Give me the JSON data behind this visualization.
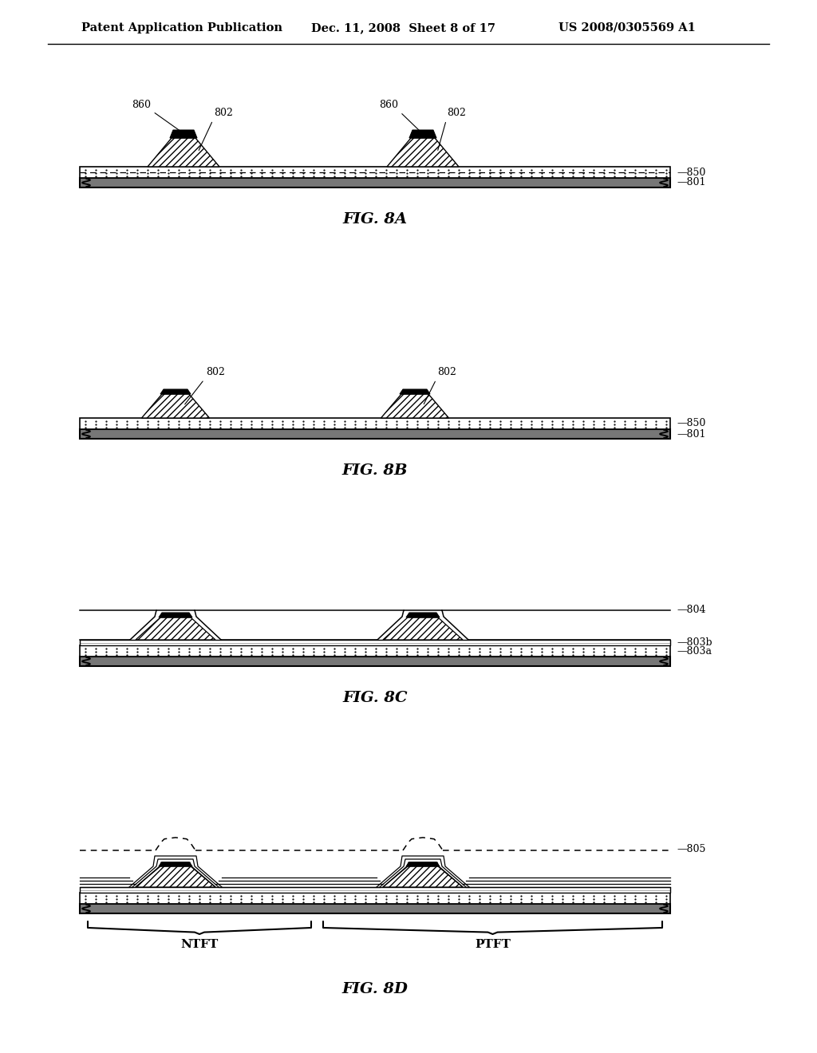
{
  "title_left": "Patent Application Publication",
  "title_mid": "Dec. 11, 2008  Sheet 8 of 17",
  "title_right": "US 2008/0305569 A1",
  "fig_labels": [
    "FIG. 8A",
    "FIG. 8B",
    "FIG. 8C",
    "FIG. 8D"
  ],
  "label_860": "860",
  "label_802": "802",
  "label_850": "850",
  "label_801": "801",
  "label_804": "804",
  "label_803b": "803b",
  "label_803a": "803a",
  "label_805": "805",
  "label_NTFT": "NTFT",
  "label_PTFT": "PTFT",
  "bg_color": "#ffffff",
  "line_color": "#000000"
}
